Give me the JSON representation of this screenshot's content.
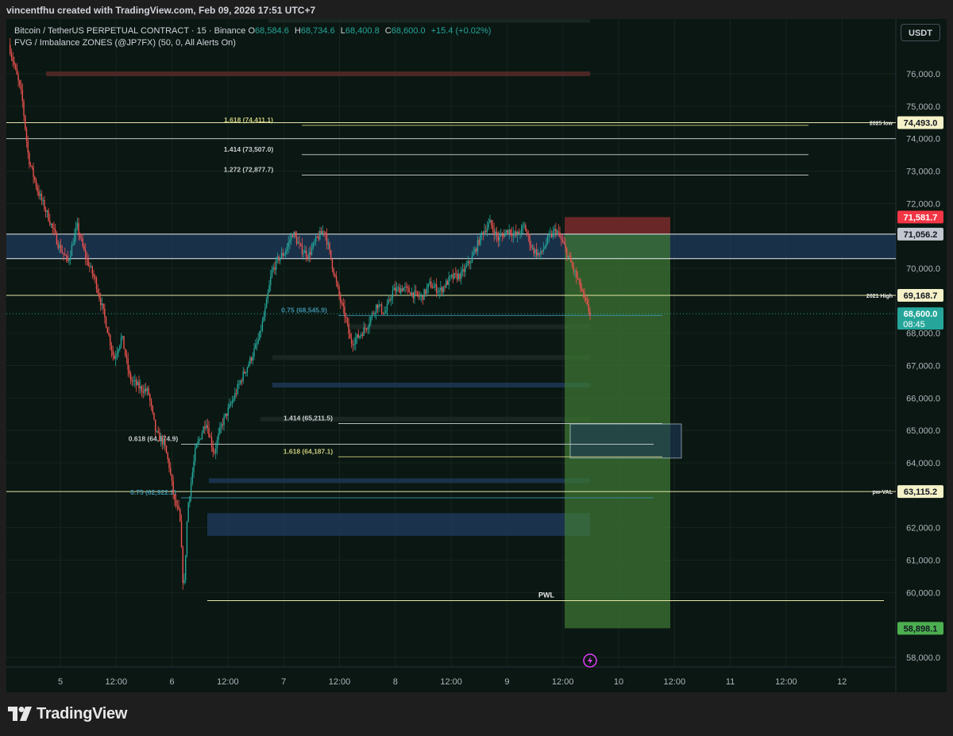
{
  "caption": "vincentfhu created with TradingView.com, Feb 09, 2026 17:51 UTC+7",
  "legend": {
    "symbol": "Bitcoin / TetherUS PERPETUAL CONTRACT · 15 · Binance",
    "open_label": "O",
    "open": "68,584.6",
    "high_label": "H",
    "high": "68,734.6",
    "low_label": "L",
    "low": "68,400.8",
    "close_label": "C",
    "close": "68,600.0",
    "change": "+15.4 (+0.02%)",
    "indicator": "FVG / Imbalance ZONES (@JP7FX) (50, 0, All Alerts On)"
  },
  "currency_button": "USDT",
  "brand": "TradingView",
  "colors": {
    "background": "#0a1712",
    "up": "#26a69a",
    "down": "#ef5350",
    "fib": "#c8c87a",
    "stop_zone": "#7a2c2c",
    "target_zone": "#3f7a35",
    "entry_tag": "#26a69a"
  },
  "chart_data": {
    "type": "candlestick",
    "y_ticks": [
      "76,000.0",
      "75,000.0",
      "74,000.0",
      "73,000.0",
      "72,000.0",
      "70,000.0",
      "68,000.0",
      "67,000.0",
      "66,000.0",
      "65,000.0",
      "64,000.0",
      "62,000.0",
      "61,000.0",
      "60,000.0",
      "58,000.0"
    ],
    "y_range": [
      57400,
      77800
    ],
    "x_ticks": [
      "5",
      "12:00",
      "6",
      "12:00",
      "7",
      "12:00",
      "8",
      "12:00",
      "9",
      "12:00",
      "10",
      "12:00",
      "11",
      "12:00",
      "12"
    ],
    "price_tags": [
      {
        "label": "71,581.7",
        "value": 71581.7,
        "kind": "red"
      },
      {
        "label": "71,056.2",
        "value": 71056.2,
        "kind": "grey"
      },
      {
        "label": "74,493.0",
        "value": 74493.0,
        "kind": "level",
        "note": "2025 low"
      },
      {
        "label": "69,168.7",
        "value": 69168.7,
        "kind": "level",
        "note": "2021 High"
      },
      {
        "label": "68,600.0",
        "value": 68600.0,
        "kind": "current",
        "countdown": "08:45"
      },
      {
        "label": "63,115.2",
        "value": 63115.2,
        "kind": "level",
        "note": "pw-VAL"
      },
      {
        "label": "58,898.1",
        "value": 58898.1,
        "kind": "green"
      }
    ],
    "fib_labels": [
      {
        "text": "1.618 (74,411.1)",
        "value": 74411.1
      },
      {
        "text": "1.414 (73,507.0)",
        "value": 73507.0
      },
      {
        "text": "1.272 (72,877.7)",
        "value": 72877.7
      },
      {
        "text": "0.75 (68,545.9)",
        "value": 68545.9
      },
      {
        "text": "1.414 (65,211.5)",
        "value": 65211.5
      },
      {
        "text": "0.618 (64,574.9)",
        "value": 64574.9
      },
      {
        "text": "1.618 (64,187.1)",
        "value": 64187.1
      },
      {
        "text": "0.75 (62,922.2)",
        "value": 62922.2
      }
    ],
    "annotations": [
      "PWL"
    ],
    "close_path": [
      [
        0,
        76900
      ],
      [
        0.04,
        76300
      ],
      [
        0.1,
        75300
      ],
      [
        0.15,
        73400
      ],
      [
        0.22,
        72400
      ],
      [
        0.3,
        71600
      ],
      [
        0.38,
        70700
      ],
      [
        0.45,
        70200
      ],
      [
        0.52,
        71300
      ],
      [
        0.58,
        70400
      ],
      [
        0.66,
        69600
      ],
      [
        0.74,
        68300
      ],
      [
        0.8,
        67200
      ],
      [
        0.86,
        67900
      ],
      [
        0.92,
        66600
      ],
      [
        1.0,
        66300
      ],
      [
        1.06,
        66200
      ],
      [
        1.12,
        64900
      ],
      [
        1.18,
        64600
      ],
      [
        1.22,
        63900
      ],
      [
        1.26,
        62800
      ],
      [
        1.3,
        62400
      ],
      [
        1.33,
        59900
      ],
      [
        1.36,
        62600
      ],
      [
        1.42,
        64400
      ],
      [
        1.5,
        65300
      ],
      [
        1.56,
        64300
      ],
      [
        1.62,
        65200
      ],
      [
        1.7,
        65900
      ],
      [
        1.78,
        66700
      ],
      [
        1.84,
        67200
      ],
      [
        1.9,
        67800
      ],
      [
        1.95,
        68700
      ],
      [
        2.0,
        69900
      ],
      [
        2.05,
        70300
      ],
      [
        2.1,
        70500
      ],
      [
        2.16,
        71100
      ],
      [
        2.22,
        70600
      ],
      [
        2.28,
        70400
      ],
      [
        2.34,
        70900
      ],
      [
        2.4,
        71200
      ],
      [
        2.46,
        70100
      ],
      [
        2.52,
        69000
      ],
      [
        2.56,
        68500
      ],
      [
        2.6,
        67700
      ],
      [
        2.66,
        67900
      ],
      [
        2.72,
        68200
      ],
      [
        2.8,
        68900
      ],
      [
        2.86,
        68600
      ],
      [
        2.92,
        69300
      ],
      [
        3.0,
        69400
      ],
      [
        3.08,
        69200
      ],
      [
        3.14,
        69100
      ],
      [
        3.2,
        69500
      ],
      [
        3.28,
        69300
      ],
      [
        3.36,
        69700
      ],
      [
        3.44,
        69800
      ],
      [
        3.52,
        70300
      ],
      [
        3.6,
        71100
      ],
      [
        3.66,
        71400
      ],
      [
        3.72,
        70900
      ],
      [
        3.8,
        71200
      ],
      [
        3.86,
        71000
      ],
      [
        3.92,
        71300
      ],
      [
        3.98,
        70600
      ],
      [
        4.04,
        70400
      ],
      [
        4.1,
        70900
      ],
      [
        4.16,
        71200
      ],
      [
        4.22,
        70700
      ],
      [
        4.28,
        70100
      ],
      [
        4.34,
        69500
      ],
      [
        4.38,
        69000
      ],
      [
        4.42,
        68600
      ]
    ]
  }
}
